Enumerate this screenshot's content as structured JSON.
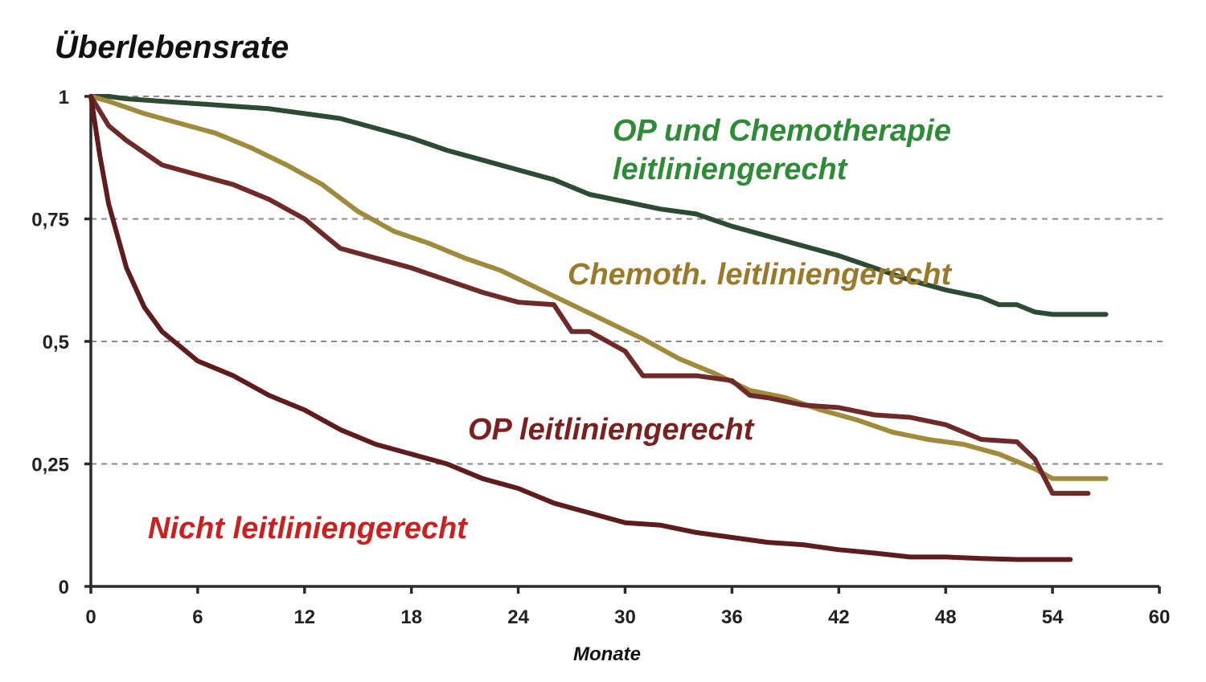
{
  "chart_data": {
    "type": "line",
    "title": "Überlebensrate",
    "xlabel": "Monate",
    "ylabel": "",
    "xlim": [
      0,
      60
    ],
    "ylim": [
      0,
      1
    ],
    "x_ticks": [
      0,
      6,
      12,
      18,
      24,
      30,
      36,
      42,
      48,
      54,
      60
    ],
    "x_tick_labels": [
      "0",
      "6",
      "12",
      "18",
      "24",
      "30",
      "36",
      "42",
      "48",
      "54",
      "60"
    ],
    "y_ticks": [
      0,
      0.25,
      0.5,
      0.75,
      1
    ],
    "y_tick_labels": [
      "0",
      "0,25",
      "0,5",
      "0,75",
      "1"
    ],
    "grid": "horizontal dashed",
    "series": [
      {
        "name": "OP und Chemotherapie leitliniengerecht",
        "label_lines": [
          "OP und Chemotherapie",
          "leitliniengerecht"
        ],
        "color": "#2d4a33",
        "label_color": "#2e8b36",
        "x": [
          0,
          1,
          2,
          4,
          6,
          8,
          10,
          12,
          14,
          16,
          18,
          20,
          22,
          24,
          26,
          28,
          30,
          32,
          34,
          36,
          38,
          40,
          42,
          44,
          46,
          48,
          50,
          51,
          52,
          53,
          54,
          57
        ],
        "y": [
          1.0,
          1.0,
          0.995,
          0.99,
          0.985,
          0.98,
          0.975,
          0.965,
          0.955,
          0.935,
          0.915,
          0.89,
          0.87,
          0.85,
          0.83,
          0.8,
          0.785,
          0.77,
          0.76,
          0.735,
          0.715,
          0.695,
          0.675,
          0.65,
          0.625,
          0.605,
          0.59,
          0.575,
          0.575,
          0.56,
          0.555,
          0.555
        ]
      },
      {
        "name": "Chemoth. leitliniengerecht",
        "label_lines": [
          "Chemoth. leitliniengerecht"
        ],
        "color": "#a08a3c",
        "label_color": "#9a7a2a",
        "x": [
          0,
          1,
          3,
          5,
          7,
          9,
          11,
          13,
          15,
          17,
          19,
          21,
          23,
          25,
          27,
          29,
          31,
          33,
          35,
          37,
          39,
          41,
          43,
          45,
          47,
          49,
          51,
          53,
          54,
          57
        ],
        "y": [
          1.0,
          0.99,
          0.965,
          0.945,
          0.925,
          0.895,
          0.86,
          0.82,
          0.765,
          0.725,
          0.7,
          0.67,
          0.645,
          0.61,
          0.575,
          0.54,
          0.505,
          0.465,
          0.435,
          0.4,
          0.385,
          0.36,
          0.34,
          0.315,
          0.3,
          0.29,
          0.27,
          0.24,
          0.22,
          0.22
        ]
      },
      {
        "name": "OP leitliniengerecht",
        "label_lines": [
          "OP leitliniengerecht"
        ],
        "color": "#6e2a28",
        "label_color": "#7a2020",
        "x": [
          0,
          1,
          2,
          4,
          6,
          8,
          10,
          12,
          13,
          14,
          16,
          18,
          20,
          22,
          24,
          26,
          27,
          28,
          30,
          31,
          32,
          34,
          36,
          37,
          38,
          40,
          42,
          44,
          46,
          48,
          50,
          52,
          53,
          54,
          56
        ],
        "y": [
          1.0,
          0.94,
          0.91,
          0.86,
          0.84,
          0.82,
          0.79,
          0.75,
          0.72,
          0.69,
          0.67,
          0.65,
          0.625,
          0.6,
          0.58,
          0.575,
          0.52,
          0.52,
          0.48,
          0.43,
          0.43,
          0.43,
          0.42,
          0.39,
          0.385,
          0.37,
          0.365,
          0.35,
          0.345,
          0.33,
          0.3,
          0.295,
          0.26,
          0.19,
          0.19
        ]
      },
      {
        "name": "Nicht leitliniengerecht",
        "label_lines": [
          "Nicht leitliniengerecht"
        ],
        "color": "#5e1c1c",
        "label_color": "#cc1f1f",
        "x": [
          0,
          0.5,
          1,
          2,
          3,
          4,
          5,
          6,
          8,
          10,
          12,
          14,
          16,
          18,
          20,
          22,
          24,
          26,
          28,
          30,
          32,
          34,
          36,
          38,
          40,
          42,
          44,
          46,
          48,
          50,
          52,
          55
        ],
        "y": [
          1.0,
          0.88,
          0.78,
          0.65,
          0.57,
          0.52,
          0.49,
          0.46,
          0.43,
          0.39,
          0.36,
          0.32,
          0.29,
          0.27,
          0.25,
          0.22,
          0.2,
          0.17,
          0.15,
          0.13,
          0.125,
          0.11,
          0.1,
          0.09,
          0.085,
          0.075,
          0.068,
          0.06,
          0.06,
          0.057,
          0.055,
          0.055
        ]
      }
    ]
  }
}
